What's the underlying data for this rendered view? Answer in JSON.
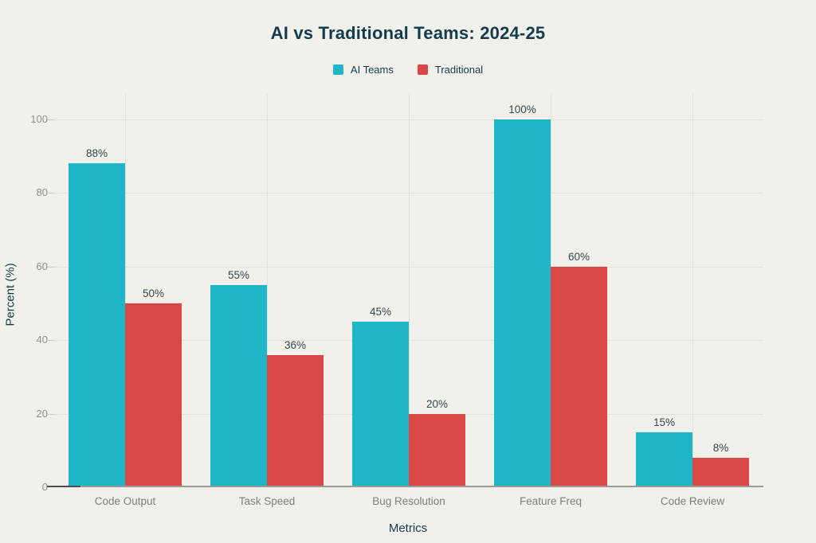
{
  "chart_data": {
    "type": "bar",
    "title": "AI vs Traditional Teams: 2024-25",
    "categories": [
      "Code Output",
      "Task Speed",
      "Bug Resolution",
      "Feature Freq",
      "Code Review"
    ],
    "series": [
      {
        "name": "AI Teams",
        "color": "#20b6c9",
        "values": [
          88,
          55,
          45,
          100,
          15
        ]
      },
      {
        "name": "Traditional",
        "color": "#da4747",
        "values": [
          50,
          36,
          20,
          60,
          8
        ]
      }
    ],
    "data_labels": true,
    "value_label_format": "{v}%",
    "xlabel": "Metrics",
    "ylabel": "Percent (%)",
    "ylim": [
      0,
      100
    ],
    "yticks": [
      0,
      20,
      40,
      60,
      80,
      100
    ],
    "grid": true,
    "legend_position": "top-center"
  },
  "theme": {
    "bg": "#f1f0ea",
    "grid": "#e2e0da",
    "axis": "#9b9b95",
    "axis-dark": "#4b4d51",
    "tickmark": "#c9c8c1",
    "text-dark": "#123c4d",
    "text-gray": "#8f908b",
    "text-value": "#35464f",
    "text-cat": "#7e7f7a"
  }
}
